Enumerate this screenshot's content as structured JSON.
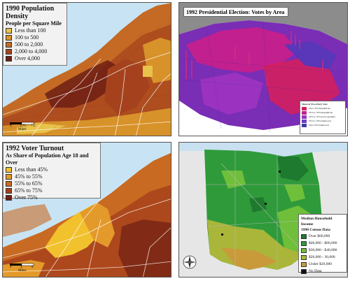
{
  "population_density_map": {
    "title": "1990 Population Density",
    "subtitle": "People per Square Mile",
    "legend": [
      {
        "label": "Less than 100",
        "color": "#e8c24a"
      },
      {
        "label": "100 to 500",
        "color": "#d8922a"
      },
      {
        "label": "500 to 2,000",
        "color": "#c46a24"
      },
      {
        "label": "2,000 to 4,000",
        "color": "#a5421d"
      },
      {
        "label": "Over 4,000",
        "color": "#6e1f14"
      }
    ],
    "scale": {
      "ticks": [
        "0",
        "3.75",
        "7.5"
      ],
      "unit": "Miles"
    }
  },
  "election_map": {
    "title": "1992 Presidential Election: Votes by Area",
    "legend_title": "Share of Two-Party Vote",
    "legend": [
      {
        "label": "Over 70% Republican",
        "color": "#d81e5b"
      },
      {
        "label": "55% to 70% Republican",
        "color": "#c2208e"
      },
      {
        "label": "45% to 55% (toss-up/split)",
        "color": "#9b33c0"
      },
      {
        "label": "55% to 70% Democrat",
        "color": "#6c3cc8"
      },
      {
        "label": "Over 70% Democrat",
        "color": "#3f3aa8"
      }
    ]
  },
  "voter_turnout_map": {
    "title": "1992 Voter Turnout",
    "subtitle": "As Share of Population Age 18 and Over",
    "legend": [
      {
        "label": "Less than 45%",
        "color": "#f2c12e"
      },
      {
        "label": "45% to 55%",
        "color": "#e39a2b"
      },
      {
        "label": "55% to 65%",
        "color": "#c96a22"
      },
      {
        "label": "65% to 75%",
        "color": "#a6401c"
      },
      {
        "label": "Over 75%",
        "color": "#6e1f14"
      }
    ],
    "scale": {
      "ticks": [
        "0",
        "4",
        "8"
      ],
      "unit": "Miles"
    }
  },
  "income_map": {
    "legend_title": "Median Household Income",
    "legend_subtitle": "1990 Census Data",
    "legend": [
      {
        "label": "Over $60,000",
        "color": "#1e7a2e"
      },
      {
        "label": "$40,000 - $60,000",
        "color": "#2f9a3a"
      },
      {
        "label": "$30,000 - $40,000",
        "color": "#6fbf3a"
      },
      {
        "label": "$20,000 - 30,000",
        "color": "#a9b63a"
      },
      {
        "label": "Under $20,000",
        "color": "#c99a3a"
      },
      {
        "label": "No Data",
        "color": "#111111"
      }
    ]
  }
}
